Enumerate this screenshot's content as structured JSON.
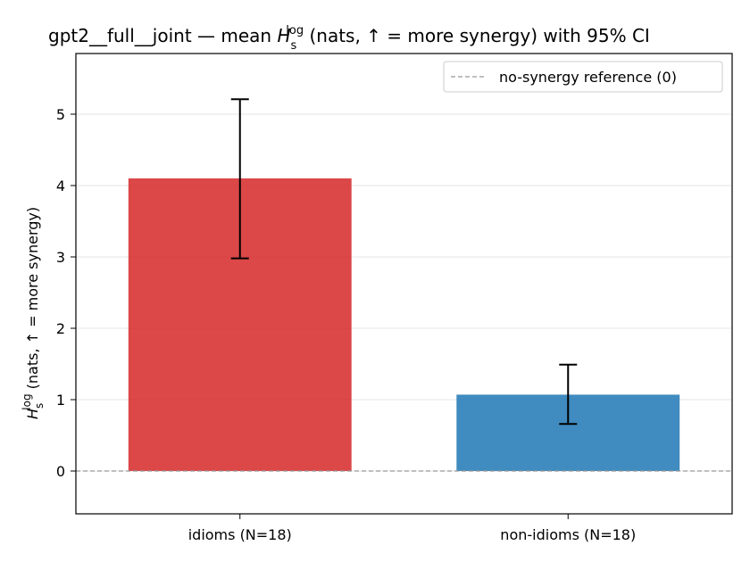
{
  "chart_data": {
    "type": "bar",
    "title": {
      "prefix": "gpt2__full__joint — mean ",
      "symbol": "H",
      "subscript": "s",
      "superscript": "log",
      "suffix": " (nats, ↑ = more synergy) with 95% CI"
    },
    "ylabel": {
      "symbol": "H",
      "subscript": "s",
      "superscript": "log",
      "suffix": " (nats, ↑ = more synergy)"
    },
    "xlabel": "",
    "categories": [
      "idioms (N=18)",
      "non-idioms (N=18)"
    ],
    "values": [
      4.1,
      1.07
    ],
    "ci_low": [
      2.98,
      0.66
    ],
    "ci_high": [
      5.21,
      1.49
    ],
    "colors": [
      "#d62728",
      "#1f77b4"
    ],
    "ylim": [
      -0.6,
      5.85
    ],
    "yticks": [
      0,
      1,
      2,
      3,
      4,
      5
    ],
    "grid": "y",
    "reference_line": {
      "y": 0,
      "label": "no-synergy reference (0)",
      "style": "dashed",
      "color": "#999999"
    },
    "legend": {
      "position": "top-right"
    }
  }
}
